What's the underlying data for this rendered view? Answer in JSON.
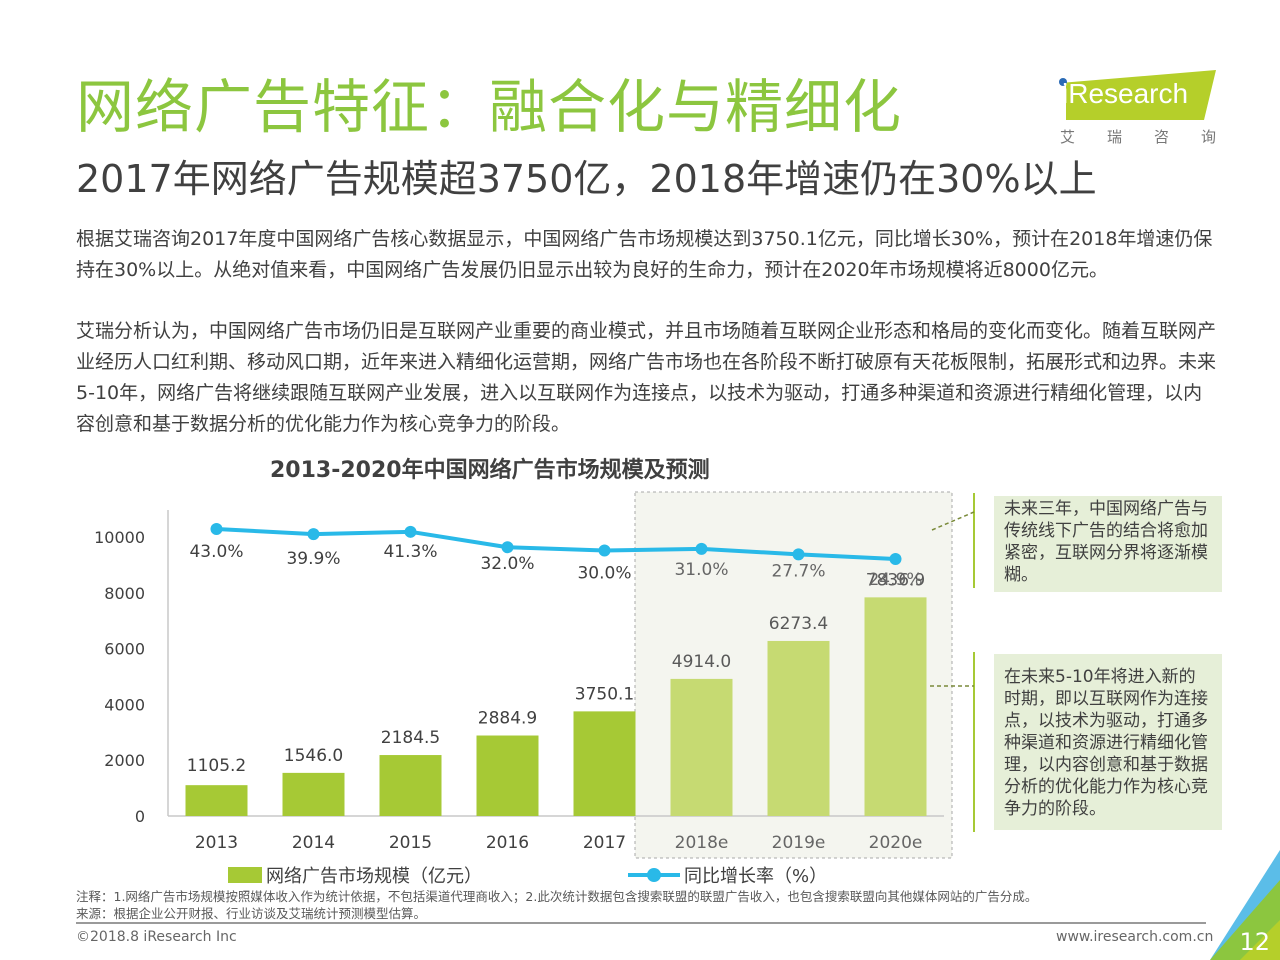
{
  "header": {
    "title": "网络广告特征：融合化与精细化",
    "subtitle": "2017年网络广告规模超3750亿，2018年增速仍在30%以上",
    "logo": {
      "brand": "iResearch",
      "cn_chars": [
        "艾",
        "瑞",
        "咨",
        "询"
      ]
    }
  },
  "body": {
    "paragraph1": "根据艾瑞咨询2017年度中国网络广告核心数据显示，中国网络广告市场规模达到3750.1亿元，同比增长30%，预计在2018年增速仍保持在30%以上。从绝对值来看，中国网络广告发展仍旧显示出较为良好的生命力，预计在2020年市场规模将近8000亿元。",
    "paragraph2": "艾瑞分析认为，中国网络广告市场仍旧是互联网产业重要的商业模式，并且市场随着互联网企业形态和格局的变化而变化。随着互联网产业经历人口红利期、移动风口期，近年来进入精细化运营期，网络广告市场也在各阶段不断打破原有天花板限制，拓展形式和边界。未来5-10年，网络广告将继续跟随互联网产业发展，进入以互联网作为连接点，以技术为驱动，打通多种渠道和资源进行精细化管理，以内容创意和基于数据分析的优化能力作为核心竞争力的阶段。"
  },
  "callouts": {
    "near_term": "未来三年，中国网络广告与传统线下广告的结合将愈加紧密，互联网分界将逐渐模糊。",
    "long_term": "在未来5-10年将进入新的时期，即以互联网作为连接点，以技术为驱动，打通多种渠道和资源进行精细化管理，以内容创意和基于数据分析的优化能力作为核心竞争力的阶段。"
  },
  "chart_data": {
    "type": "bar",
    "title": "2013-2020年中国网络广告市场规模及预测",
    "categories": [
      "2013",
      "2014",
      "2015",
      "2016",
      "2017",
      "2018e",
      "2019e",
      "2020e"
    ],
    "forecast_from_index": 5,
    "series": [
      {
        "name": "网络广告市场规模（亿元）",
        "type": "bar",
        "values": [
          1105.2,
          1546.0,
          2184.5,
          2884.9,
          3750.1,
          4914.0,
          6273.4,
          7836.9
        ],
        "labels": [
          "1105.2",
          "1546.0",
          "2184.5",
          "2884.9",
          "3750.1",
          "4914.0",
          "6273.4",
          "7836.9"
        ],
        "color": "#a6c935",
        "forecast_color": "#c6da72"
      },
      {
        "name": "同比增长率（%）",
        "type": "line",
        "values": [
          43.0,
          39.9,
          41.3,
          32.0,
          30.0,
          31.0,
          27.7,
          24.9
        ],
        "labels": [
          "43.0%",
          "39.9%",
          "41.3%",
          "32.0%",
          "30.0%",
          "31.0%",
          "27.7%",
          "24.9%"
        ],
        "color": "#29b9e8"
      }
    ],
    "yaxis": {
      "ticks": [
        0,
        2000,
        4000,
        6000,
        8000,
        10000
      ],
      "ylim": [
        0,
        10000
      ]
    },
    "xlabel": "",
    "ylabel": "",
    "grid": false,
    "legend": "bottom"
  },
  "footer": {
    "note": "注释：1.网络广告市场规模按照媒体收入作为统计依据，不包括渠道代理商收入；2.此次统计数据包含搜索联盟的联盟广告收入，也包含搜索联盟向其他媒体网站的广告分成。",
    "source": "来源：根据企业公开财报、行业访谈及艾瑞统计预测模型估算。",
    "copyright": "©2018.8 iResearch Inc",
    "website": "www.iresearch.com.cn",
    "page_number": "12"
  },
  "colors": {
    "brand_green": "#8cc63f",
    "logo_green": "#b5cf2a",
    "line_blue": "#29b9e8",
    "callout_bg": "#e6efd8"
  }
}
